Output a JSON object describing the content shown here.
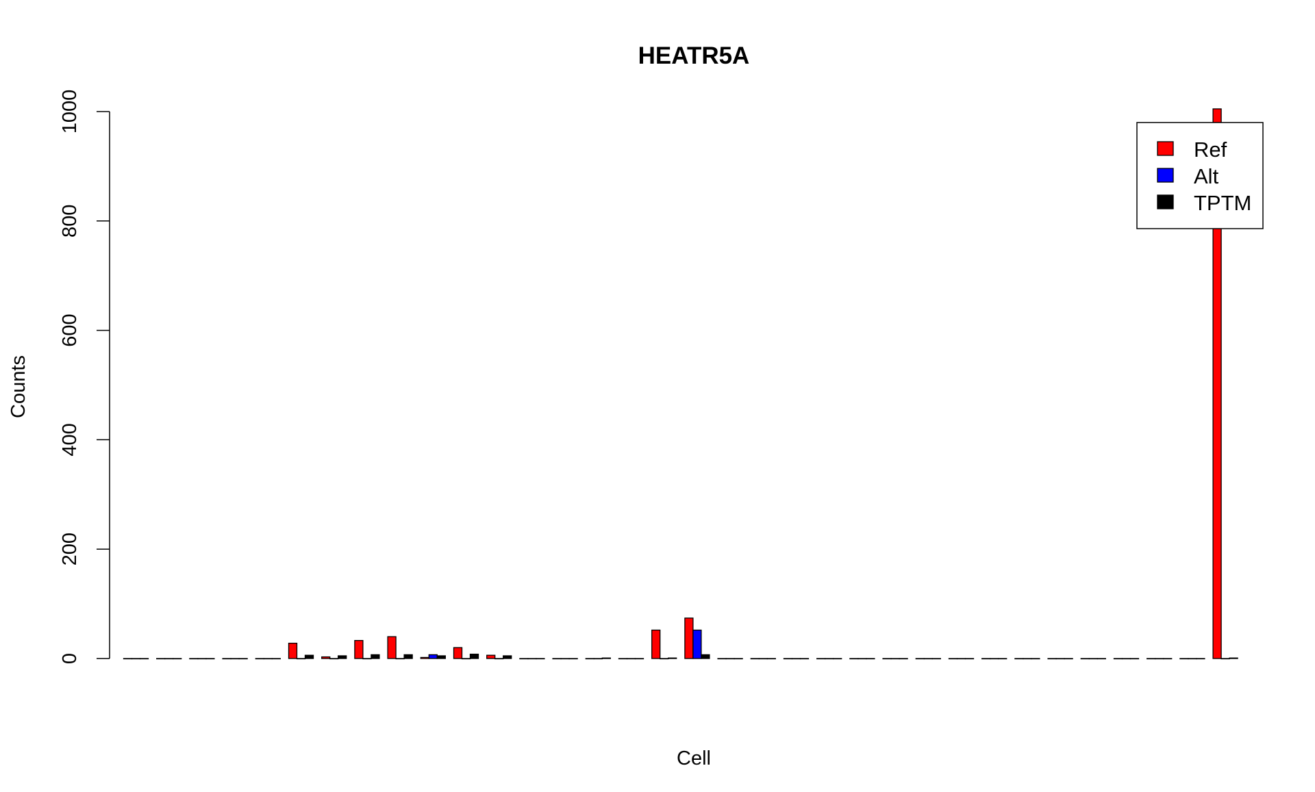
{
  "chart_data": {
    "type": "bar",
    "title": "HEATR5A",
    "xlabel": "Cell",
    "ylabel": "Counts",
    "ylim": [
      0,
      1000
    ],
    "yticks": [
      0,
      200,
      400,
      600,
      800,
      1000
    ],
    "grid": false,
    "legend_position": "top-right",
    "categories": [
      "",
      "",
      "",
      "",
      "",
      "",
      "",
      "",
      "",
      "",
      "",
      "",
      "",
      "",
      "",
      "",
      "",
      "",
      "",
      "",
      "",
      "",
      "",
      "",
      "",
      "",
      "",
      "",
      "",
      "",
      "",
      "",
      "",
      ""
    ],
    "series": [
      {
        "name": "Ref",
        "color": "#ff0000",
        "values": [
          0,
          0,
          0,
          0,
          0,
          28,
          3,
          33,
          40,
          2,
          20,
          6,
          0,
          0,
          0,
          0,
          52,
          74,
          0,
          0,
          0,
          0,
          0,
          0,
          0,
          0,
          0,
          0,
          0,
          0,
          0,
          0,
          0,
          1005
        ]
      },
      {
        "name": "Alt",
        "color": "#0000ff",
        "values": [
          0,
          0,
          0,
          0,
          0,
          0,
          0,
          0,
          0,
          7,
          0,
          0,
          0,
          0,
          0,
          0,
          0,
          52,
          0,
          0,
          0,
          0,
          0,
          0,
          0,
          0,
          0,
          0,
          0,
          0,
          0,
          0,
          0,
          0
        ]
      },
      {
        "name": "TPTM",
        "color": "#000000",
        "values": [
          0,
          0,
          0,
          0,
          0,
          6,
          5,
          7,
          7,
          5,
          8,
          5,
          0,
          0,
          1,
          0,
          1,
          7,
          0,
          0,
          0,
          0,
          0,
          0,
          0,
          0,
          0,
          0,
          0,
          0,
          0,
          0,
          0,
          1
        ]
      }
    ]
  }
}
